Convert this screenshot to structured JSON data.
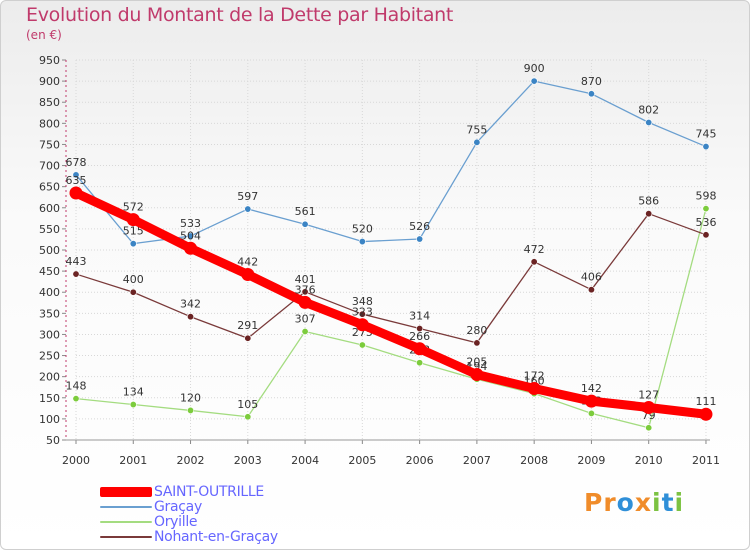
{
  "header": {
    "title": "Evolution du Montant de la Dette par Habitant",
    "subtitle": "(en €)"
  },
  "logo": {
    "text": "Proxiti"
  },
  "chart_data": {
    "type": "line",
    "title": "Evolution du Montant de la Dette par Habitant",
    "ylabel": "(en €)",
    "xlabel": "",
    "categories": [
      "2000",
      "2001",
      "2002",
      "2003",
      "2004",
      "2005",
      "2006",
      "2007",
      "2008",
      "2009",
      "2010",
      "2011"
    ],
    "ylim": [
      50,
      950
    ],
    "yticks": [
      50,
      100,
      150,
      200,
      250,
      300,
      350,
      400,
      450,
      500,
      550,
      600,
      650,
      700,
      750,
      800,
      850,
      900,
      950
    ],
    "grid": true,
    "legend_position": "bottom-left",
    "series": [
      {
        "name": "Graçay",
        "color": "#6a9fd0",
        "marker": "#3b84c4",
        "emphasis": false,
        "values": [
          678,
          515,
          533,
          597,
          561,
          520,
          526,
          755,
          900,
          870,
          802,
          745
        ]
      },
      {
        "name": "Oryille",
        "color": "#a4dc80",
        "marker": "#7ccc3c",
        "emphasis": false,
        "values": [
          148,
          134,
          120,
          105,
          307,
          275,
          233,
          194,
          160,
          113,
          79,
          598
        ]
      },
      {
        "name": "Nohant-en-Graçay",
        "color": "#7a3a3a",
        "marker": "#6b2323",
        "emphasis": false,
        "values": [
          443,
          400,
          342,
          291,
          401,
          348,
          314,
          280,
          472,
          406,
          586,
          536
        ]
      },
      {
        "name": "SAINT-OUTRILLE",
        "color": "#ff0000",
        "marker": "#ff0000",
        "emphasis": true,
        "values": [
          635,
          572,
          504,
          442,
          376,
          323,
          266,
          205,
          172,
          142,
          127,
          111
        ]
      }
    ]
  }
}
